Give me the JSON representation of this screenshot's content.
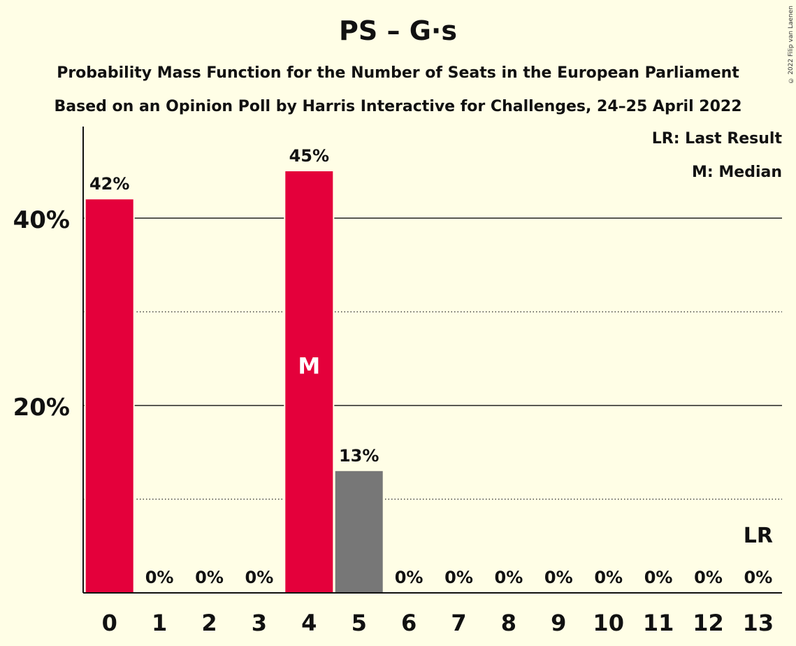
{
  "title": "PS – G·s",
  "subtitle1": "Probability Mass Function for the Number of Seats in the European Parliament",
  "subtitle2": "Based on an Opinion Poll by Harris Interactive for Challenges, 24–25 April 2022",
  "copyright": "© 2022 Filip van Laenen",
  "legend": {
    "last_result": "LR: Last Result",
    "median": "M: Median"
  },
  "colors": {
    "background": "#FFFEE6",
    "party": "#E4003B",
    "other": "#777777"
  },
  "chart_data": {
    "type": "bar",
    "categories": [
      "0",
      "1",
      "2",
      "3",
      "4",
      "5",
      "6",
      "7",
      "8",
      "9",
      "10",
      "11",
      "12",
      "13"
    ],
    "values": [
      42,
      0,
      0,
      0,
      45,
      13,
      0,
      0,
      0,
      0,
      0,
      0,
      0,
      0
    ],
    "value_labels": [
      "42%",
      "0%",
      "0%",
      "0%",
      "45%",
      "13%",
      "0%",
      "0%",
      "0%",
      "0%",
      "0%",
      "0%",
      "0%",
      "0%"
    ],
    "bar_colors": [
      "party",
      "party",
      "party",
      "party",
      "party",
      "other",
      "other",
      "other",
      "other",
      "other",
      "other",
      "other",
      "other",
      "other"
    ],
    "ylim": [
      0,
      50
    ],
    "y_ticks": [
      {
        "value": 20,
        "label": "20%"
      },
      {
        "value": 40,
        "label": "40%"
      }
    ],
    "minor_gridlines": [
      10,
      30
    ],
    "median_seat": "4",
    "median_marker": "M",
    "last_result_seat": "13",
    "last_result_marker": "LR"
  }
}
